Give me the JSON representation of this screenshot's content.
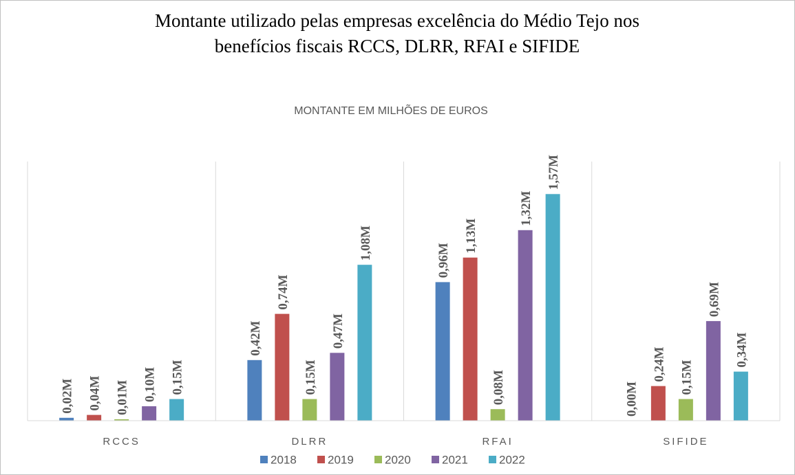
{
  "chart_data": {
    "type": "bar",
    "title": "Montante utilizado pelas empresas excelência do Médio Tejo nos benefícios fiscais RCCS, DLRR, RFAI e SIFIDE",
    "subtitle": "MONTANTE EM MILHÕES DE EUROS",
    "categories": [
      "RCCS",
      "DLRR",
      "RFAI",
      "SIFIDE"
    ],
    "series": [
      {
        "name": "2018",
        "color": "#4f81bd",
        "values": [
          0.02,
          0.42,
          0.96,
          0.0
        ],
        "value_labels": [
          "0,02M",
          "0,42M",
          "0,96M",
          "0,00M"
        ]
      },
      {
        "name": "2019",
        "color": "#c0504d",
        "values": [
          0.04,
          0.74,
          1.13,
          0.24
        ],
        "value_labels": [
          "0,04M",
          "0,74M",
          "1,13M",
          "0,24M"
        ]
      },
      {
        "name": "2020",
        "color": "#9bbb59",
        "values": [
          0.01,
          0.15,
          0.08,
          0.15
        ],
        "value_labels": [
          "0,01M",
          "0,15M",
          "0,08M",
          "0,15M"
        ]
      },
      {
        "name": "2021",
        "color": "#8064a2",
        "values": [
          0.1,
          0.47,
          1.32,
          0.69
        ],
        "value_labels": [
          "0,10M",
          "0,47M",
          "1,32M",
          "0,69M"
        ]
      },
      {
        "name": "2022",
        "color": "#4bacc6",
        "values": [
          0.15,
          1.08,
          1.57,
          0.34
        ],
        "value_labels": [
          "0,15M",
          "1,08M",
          "1,57M",
          "0,34M"
        ]
      }
    ],
    "legend": "bottom"
  }
}
